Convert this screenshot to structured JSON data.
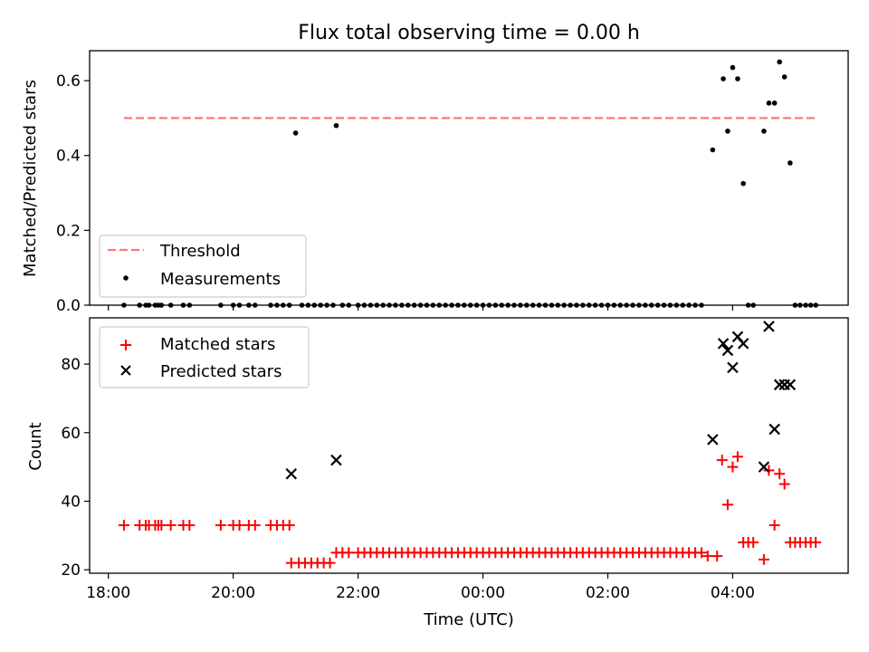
{
  "figure": {
    "title": "Flux total observing time = 0.00 h"
  },
  "chart_data": [
    {
      "type": "scatter",
      "ylabel": "Matched/Predicted stars",
      "xlim": [
        17.7,
        5.85
      ],
      "ylim": [
        0,
        0.68
      ],
      "yticks": [
        0.0,
        0.2,
        0.4,
        0.6
      ],
      "ytick_labels": [
        "0.0",
        "0.2",
        "0.4",
        "0.6"
      ],
      "threshold": {
        "name": "Threshold",
        "value": 0.5,
        "x_start": 18.25,
        "x_end": 5.33,
        "color": "#ff7777"
      },
      "legend": {
        "placement": "lower-left",
        "entries": [
          "Threshold",
          "Measurements"
        ]
      },
      "series": [
        {
          "name": "Measurements",
          "color": "#000000",
          "x": [
            18.25,
            18.5,
            18.6,
            18.65,
            18.75,
            18.8,
            18.85,
            19.0,
            19.2,
            19.3,
            19.8,
            20.0,
            20.1,
            20.25,
            20.35,
            20.6,
            20.7,
            20.8,
            20.9,
            21.0,
            21.1,
            21.2,
            21.3,
            21.4,
            21.5,
            21.6,
            21.65,
            21.75,
            21.85,
            22.0,
            22.1,
            22.2,
            22.3,
            22.4,
            22.5,
            22.6,
            22.7,
            22.8,
            22.9,
            23.0,
            23.1,
            23.2,
            23.3,
            23.4,
            23.5,
            23.6,
            23.7,
            23.8,
            23.9,
            0.0,
            0.1,
            0.2,
            0.3,
            0.4,
            0.5,
            0.6,
            0.7,
            0.8,
            0.9,
            1.0,
            1.1,
            1.2,
            1.3,
            1.4,
            1.5,
            1.6,
            1.7,
            1.8,
            1.9,
            2.0,
            2.1,
            2.2,
            2.3,
            2.4,
            2.5,
            2.6,
            2.7,
            2.8,
            2.9,
            3.0,
            3.1,
            3.2,
            3.3,
            3.4,
            3.5,
            3.68,
            3.85,
            3.92,
            4.0,
            4.08,
            4.17,
            4.25,
            4.33,
            4.5,
            4.58,
            4.67,
            4.75,
            4.83,
            4.92,
            5.0,
            5.08,
            5.17,
            5.25,
            5.33
          ],
          "y": [
            0,
            0,
            0,
            0,
            0,
            0,
            0,
            0,
            0,
            0,
            0,
            0,
            0,
            0,
            0,
            0,
            0,
            0,
            0,
            0.46,
            0,
            0,
            0,
            0,
            0,
            0,
            0.48,
            0,
            0,
            0,
            0,
            0,
            0,
            0,
            0,
            0,
            0,
            0,
            0,
            0,
            0,
            0,
            0,
            0,
            0,
            0,
            0,
            0,
            0,
            0,
            0,
            0,
            0,
            0,
            0,
            0,
            0,
            0,
            0,
            0,
            0,
            0,
            0,
            0,
            0,
            0,
            0,
            0,
            0,
            0,
            0,
            0,
            0,
            0,
            0,
            0,
            0,
            0,
            0,
            0,
            0,
            0,
            0,
            0,
            0,
            0.415,
            0.605,
            0.465,
            0.635,
            0.605,
            0.325,
            0,
            0,
            0.465,
            0.54,
            0.54,
            0.65,
            0.61,
            0.38,
            0,
            0,
            0,
            0,
            0
          ]
        }
      ]
    },
    {
      "type": "scatter",
      "xlabel": "Time (UTC)",
      "ylabel": "Count",
      "xlim": [
        17.7,
        5.85
      ],
      "ylim": [
        19,
        93.5
      ],
      "yticks": [
        20,
        40,
        60,
        80
      ],
      "ytick_labels": [
        "20",
        "40",
        "60",
        "80"
      ],
      "x_ticks": [
        18,
        20,
        22,
        24,
        26,
        28
      ],
      "xtick_labels": [
        "18:00",
        "20:00",
        "22:00",
        "00:00",
        "02:00",
        "04:00"
      ],
      "legend": {
        "placement": "upper-left",
        "entries": [
          "Matched stars",
          "Predicted stars"
        ]
      },
      "series": [
        {
          "name": "Matched stars",
          "color": "#ff0000",
          "marker": "+",
          "x": [
            18.25,
            18.5,
            18.6,
            18.65,
            18.75,
            18.8,
            18.85,
            19.0,
            19.2,
            19.3,
            19.8,
            20.0,
            20.1,
            20.25,
            20.35,
            20.6,
            20.7,
            20.8,
            20.9,
            20.93,
            21.05,
            21.15,
            21.25,
            21.35,
            21.45,
            21.55,
            21.65,
            21.75,
            21.85,
            22.0,
            22.1,
            22.2,
            22.3,
            22.4,
            22.5,
            22.6,
            22.7,
            22.8,
            22.9,
            23.0,
            23.1,
            23.2,
            23.3,
            23.4,
            23.5,
            23.6,
            23.7,
            23.8,
            23.9,
            0.0,
            0.1,
            0.2,
            0.3,
            0.4,
            0.5,
            0.6,
            0.7,
            0.8,
            0.9,
            1.0,
            1.1,
            1.2,
            1.3,
            1.4,
            1.5,
            1.6,
            1.7,
            1.8,
            1.9,
            2.0,
            2.1,
            2.2,
            2.3,
            2.4,
            2.5,
            2.6,
            2.7,
            2.8,
            2.9,
            3.0,
            3.1,
            3.2,
            3.3,
            3.4,
            3.5,
            3.6,
            3.75,
            3.83,
            3.92,
            4.0,
            4.08,
            4.17,
            4.25,
            4.33,
            4.5,
            4.58,
            4.67,
            4.75,
            4.83,
            4.92,
            5.0,
            5.08,
            5.17,
            5.25,
            5.33
          ],
          "y": [
            33,
            33,
            33,
            33,
            33,
            33,
            33,
            33,
            33,
            33,
            33,
            33,
            33,
            33,
            33,
            33,
            33,
            33,
            33,
            22,
            22,
            22,
            22,
            22,
            22,
            22,
            25,
            25,
            25,
            25,
            25,
            25,
            25,
            25,
            25,
            25,
            25,
            25,
            25,
            25,
            25,
            25,
            25,
            25,
            25,
            25,
            25,
            25,
            25,
            25,
            25,
            25,
            25,
            25,
            25,
            25,
            25,
            25,
            25,
            25,
            25,
            25,
            25,
            25,
            25,
            25,
            25,
            25,
            25,
            25,
            25,
            25,
            25,
            25,
            25,
            25,
            25,
            25,
            25,
            25,
            25,
            25,
            25,
            25,
            25,
            24,
            24,
            52,
            39,
            50,
            53,
            28,
            28,
            28,
            23,
            49,
            33,
            48,
            45,
            28,
            28,
            28,
            28,
            28,
            28
          ]
        },
        {
          "name": "Predicted stars",
          "color": "#000000",
          "marker": "x",
          "x": [
            20.93,
            21.65,
            3.68,
            3.85,
            3.92,
            4.0,
            4.08,
            4.17,
            4.5,
            4.58,
            4.67,
            4.75,
            4.83,
            4.92
          ],
          "y": [
            48,
            52,
            58,
            86,
            84,
            79,
            88,
            86,
            50,
            91,
            61,
            74,
            74,
            74
          ]
        }
      ]
    }
  ]
}
